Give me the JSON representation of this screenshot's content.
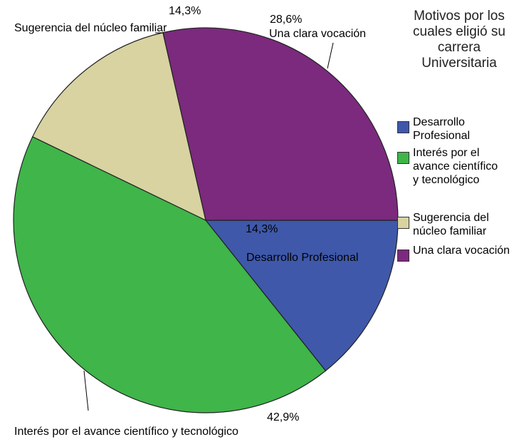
{
  "chart_data": {
    "type": "pie",
    "legend_title": "Motivos por los cuales eligió su carrera Universitaria",
    "legend": "right",
    "categories": [
      "Desarrollo Profesional",
      "Interés por el avance científico y tecnológico",
      "Sugerencia del núcleo familiar",
      "Una clara vocación"
    ],
    "values": [
      14.3,
      42.9,
      14.3,
      28.6
    ],
    "value_labels": [
      "14,3%",
      "42,9%",
      "14,3%",
      "28,6%"
    ],
    "colors": [
      "#3f58aa",
      "#3fb54a",
      "#d8d3a1",
      "#7b2a7d"
    ]
  }
}
